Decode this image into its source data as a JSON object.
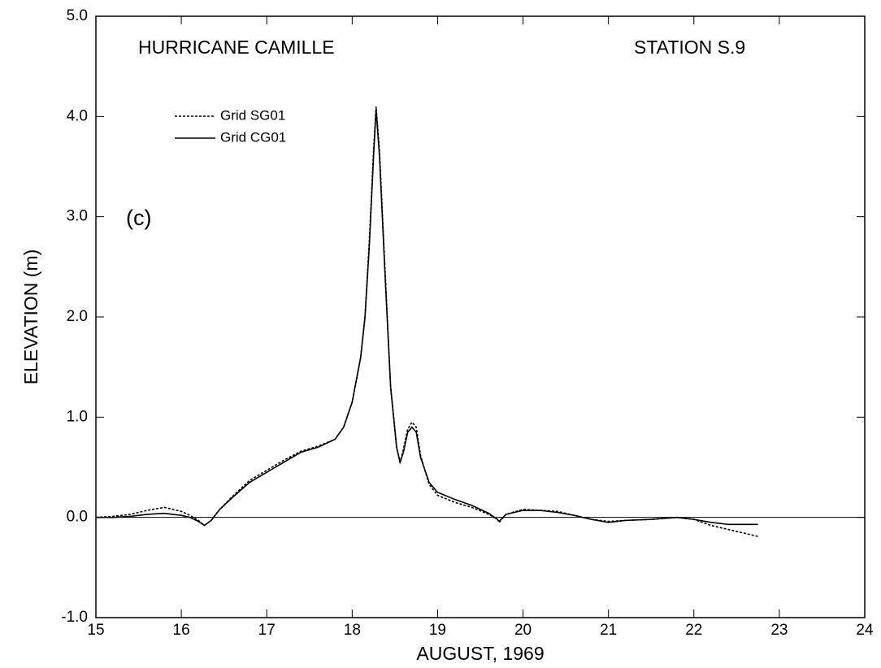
{
  "chart_data": {
    "type": "line",
    "y_label": "ELEVATION (m)",
    "x_label": "AUGUST, 1969",
    "annotations": [
      "HURRICANE CAMILLE",
      "STATION S.9",
      "(c)"
    ],
    "x": [
      15.0,
      15.2,
      15.4,
      15.6,
      15.8,
      16.0,
      16.1,
      16.2,
      16.27,
      16.35,
      16.45,
      16.6,
      16.8,
      17.0,
      17.2,
      17.4,
      17.6,
      17.8,
      17.9,
      18.0,
      18.1,
      18.15,
      18.2,
      18.25,
      18.28,
      18.32,
      18.38,
      18.45,
      18.52,
      18.56,
      18.6,
      18.65,
      18.7,
      18.75,
      18.8,
      18.9,
      19.0,
      19.2,
      19.4,
      19.6,
      19.7,
      19.72,
      19.8,
      20.0,
      20.2,
      20.4,
      20.6,
      20.8,
      21.0,
      21.2,
      21.5,
      21.8,
      22.0,
      22.2,
      22.4,
      22.75
    ],
    "series": [
      {
        "name": "Grid SG01",
        "color": "#000000",
        "style": "dotted",
        "values": [
          0.0,
          0.01,
          0.03,
          0.07,
          0.1,
          0.06,
          0.02,
          -0.03,
          -0.08,
          -0.03,
          0.08,
          0.21,
          0.37,
          0.47,
          0.57,
          0.66,
          0.71,
          0.78,
          0.9,
          1.15,
          1.6,
          2.0,
          2.75,
          3.65,
          4.1,
          3.65,
          2.55,
          1.3,
          0.7,
          0.55,
          0.68,
          0.88,
          0.95,
          0.9,
          0.62,
          0.33,
          0.22,
          0.15,
          0.1,
          0.03,
          -0.02,
          -0.05,
          0.03,
          0.08,
          0.07,
          0.06,
          0.02,
          -0.02,
          -0.04,
          -0.03,
          -0.02,
          0.0,
          -0.02,
          -0.08,
          -0.12,
          -0.19
        ]
      },
      {
        "name": "Grid CG01",
        "color": "#000000",
        "style": "solid",
        "values": [
          0.0,
          0.0,
          0.01,
          0.03,
          0.04,
          0.02,
          0.0,
          -0.04,
          -0.08,
          -0.03,
          0.08,
          0.2,
          0.35,
          0.45,
          0.55,
          0.65,
          0.7,
          0.78,
          0.9,
          1.15,
          1.6,
          2.0,
          2.7,
          3.6,
          4.07,
          3.6,
          2.5,
          1.3,
          0.7,
          0.55,
          0.65,
          0.85,
          0.9,
          0.85,
          0.6,
          0.35,
          0.25,
          0.18,
          0.12,
          0.04,
          -0.02,
          -0.04,
          0.03,
          0.07,
          0.07,
          0.05,
          0.02,
          -0.02,
          -0.05,
          -0.03,
          -0.02,
          0.0,
          -0.02,
          -0.05,
          -0.07,
          -0.07
        ]
      }
    ],
    "xlim": [
      15,
      24
    ],
    "xticks": [
      15,
      16,
      17,
      18,
      19,
      20,
      21,
      22,
      23,
      24
    ],
    "ylim": [
      -1.0,
      5.0
    ],
    "yticks": [
      {
        "value": -1.0,
        "label": "-1.0"
      },
      {
        "value": 0.0,
        "label": "0.0"
      },
      {
        "value": 1.0,
        "label": "1.0"
      },
      {
        "value": 2.0,
        "label": "2.0"
      },
      {
        "value": 3.0,
        "label": "3.0"
      },
      {
        "value": 4.0,
        "label": "4.0"
      },
      {
        "value": 5.0,
        "label": "5.0"
      }
    ],
    "zero_line": true,
    "grid": false,
    "legend": "upper left"
  }
}
